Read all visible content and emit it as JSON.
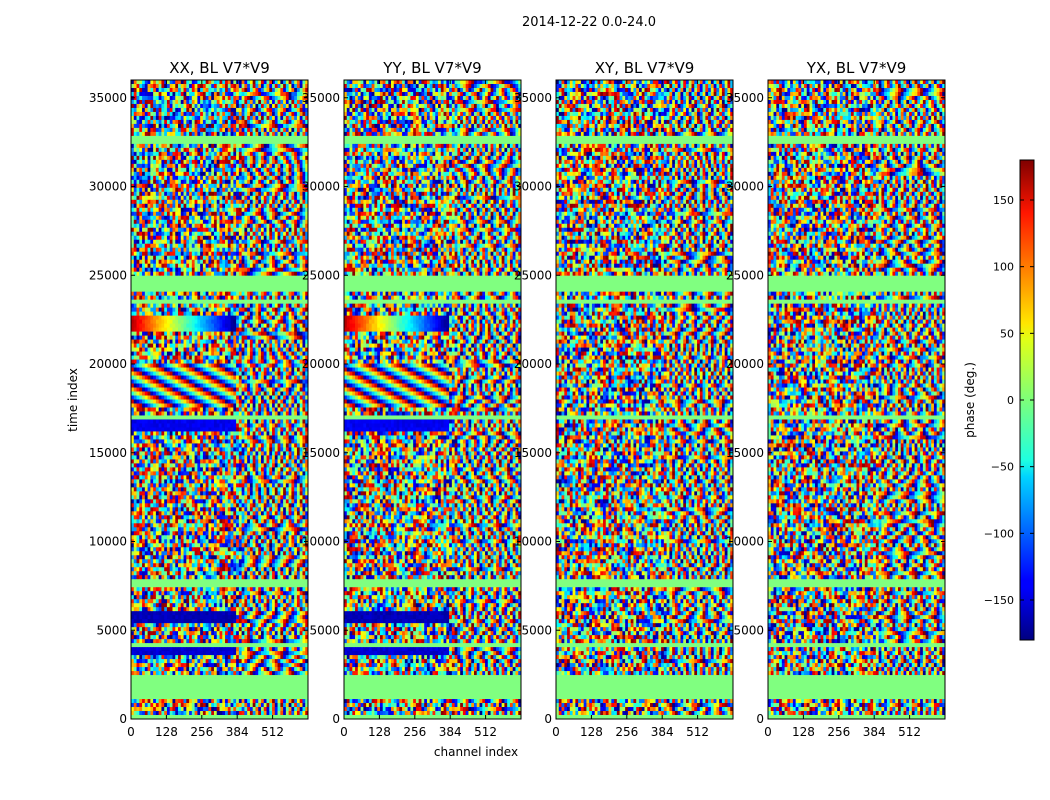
{
  "figure": {
    "suptitle": "2014-12-22 0.0-24.0"
  },
  "chart_data": {
    "type": "heatmap",
    "title": "2014-12-22 0.0-24.0",
    "xlabel": "channel index",
    "ylabel": "time index",
    "xlim": [
      0,
      640
    ],
    "ylim": [
      0,
      36000
    ],
    "x_ticks": [
      0,
      128,
      256,
      384,
      512
    ],
    "y_ticks": [
      0,
      5000,
      10000,
      15000,
      20000,
      25000,
      30000,
      35000
    ],
    "colorbar": {
      "label": "phase (deg.)",
      "range": [
        -180,
        180
      ],
      "ticks": [
        -150,
        -100,
        -50,
        0,
        50,
        100,
        150
      ],
      "tick_labels": [
        "−150",
        "−100",
        "−50",
        "0",
        "50",
        "100",
        "150"
      ],
      "colormap": "jet"
    },
    "panels": [
      {
        "title": "XX, BL V7*V9",
        "pol": "XX"
      },
      {
        "title": "YY, BL V7*V9",
        "pol": "YY"
      },
      {
        "title": "XY, BL V7*V9",
        "pol": "XY"
      },
      {
        "title": "YX, BL V7*V9",
        "pol": "YX"
      }
    ],
    "flagged_bands": [
      [
        0,
        300
      ],
      [
        1200,
        2500
      ],
      [
        4000,
        4300
      ],
      [
        7500,
        7800
      ],
      [
        16800,
        17100
      ],
      [
        23300,
        23700
      ],
      [
        24100,
        24900
      ],
      [
        32500,
        32900
      ]
    ],
    "coherent_structures": [
      {
        "panels": [
          "XX",
          "YY"
        ],
        "channels": [
          0,
          384
        ],
        "time": [
          3500,
          4300
        ],
        "phase_deg": -150
      },
      {
        "panels": [
          "XX",
          "YY"
        ],
        "channels": [
          0,
          384
        ],
        "time": [
          5400,
          6000
        ],
        "phase_deg": -160
      },
      {
        "panels": [
          "XX",
          "YY"
        ],
        "channels": [
          0,
          384
        ],
        "time": [
          16300,
          16800
        ],
        "phase_deg": -140
      },
      {
        "panels": [
          "XX",
          "YY"
        ],
        "channels": [
          0,
          384
        ],
        "time": [
          21800,
          22700
        ],
        "phase_deg": "gradient"
      },
      {
        "panels": [
          "XX",
          "YY"
        ],
        "channels": [
          0,
          384
        ],
        "time": [
          17500,
          20000
        ],
        "phase_deg": "diagonal fringes"
      }
    ]
  }
}
